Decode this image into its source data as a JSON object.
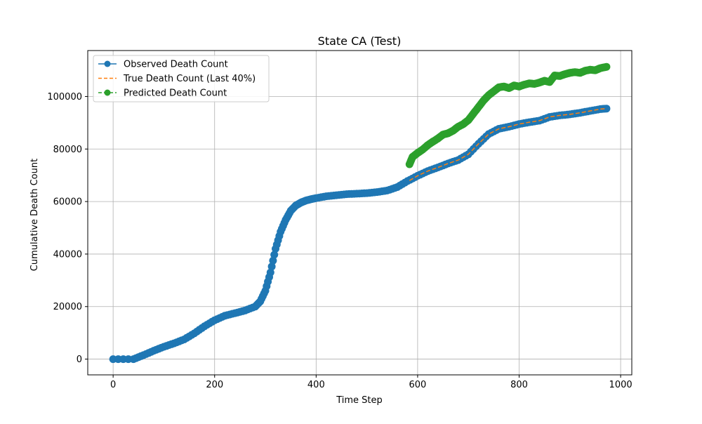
{
  "chart_data": {
    "type": "line",
    "title": "State CA (Test)",
    "xlabel": "Time Step",
    "ylabel": "Cumulative Death Count",
    "xlim": [
      -50,
      1022
    ],
    "ylim": [
      -6000,
      117500
    ],
    "xticks": [
      0,
      200,
      400,
      600,
      800,
      1000
    ],
    "xtick_labels": [
      "0",
      "200",
      "400",
      "600",
      "800",
      "1000"
    ],
    "yticks": [
      0,
      20000,
      40000,
      60000,
      80000,
      100000
    ],
    "ytick_labels": [
      "0",
      "20000",
      "40000",
      "60000",
      "80000",
      "100000"
    ],
    "grid": true,
    "legend_position": "top-left",
    "series": [
      {
        "name": "Observed Death Count",
        "color": "#1f77b4",
        "line_style": "solid",
        "marker": "circle",
        "x": [
          0,
          40,
          60,
          80,
          100,
          120,
          140,
          160,
          180,
          200,
          220,
          240,
          260,
          280,
          290,
          300,
          310,
          320,
          330,
          340,
          350,
          360,
          370,
          380,
          390,
          400,
          420,
          440,
          460,
          480,
          500,
          520,
          540,
          560,
          580,
          600,
          620,
          640,
          660,
          680,
          700,
          720,
          740,
          760,
          780,
          800,
          820,
          840,
          860,
          880,
          900,
          920,
          940,
          960,
          972
        ],
        "y": [
          0,
          0,
          1500,
          3200,
          4700,
          6000,
          7500,
          9800,
          12500,
          14800,
          16500,
          17500,
          18500,
          20000,
          22000,
          26000,
          33000,
          42000,
          48500,
          53000,
          56500,
          58500,
          59600,
          60400,
          60900,
          61300,
          62000,
          62400,
          62800,
          63000,
          63200,
          63600,
          64200,
          65500,
          67800,
          69800,
          71600,
          73000,
          74500,
          75800,
          78000,
          82000,
          85700,
          87700,
          88500,
          89500,
          90200,
          90800,
          92200,
          92800,
          93200,
          93800,
          94500,
          95200,
          95400
        ]
      },
      {
        "name": "True Death Count (Last 40%)",
        "color": "#ff7f0e",
        "line_style": "dashed",
        "x": [
          584,
          600,
          620,
          640,
          660,
          680,
          700,
          720,
          740,
          760,
          780,
          800,
          820,
          840,
          860,
          880,
          900,
          920,
          940,
          960,
          972
        ],
        "y": [
          68000,
          69800,
          71600,
          73000,
          74500,
          75800,
          78000,
          82000,
          85700,
          87700,
          88500,
          89500,
          90200,
          90800,
          92200,
          92800,
          93200,
          93800,
          94500,
          95200,
          95400
        ]
      },
      {
        "name": "Predicted Death Count",
        "color": "#2ca02c",
        "line_style": "dashed",
        "marker": "circle",
        "x": [
          584,
          590,
          600,
          610,
          620,
          630,
          640,
          650,
          660,
          670,
          680,
          690,
          700,
          710,
          720,
          730,
          740,
          750,
          760,
          770,
          780,
          790,
          800,
          810,
          820,
          830,
          840,
          850,
          860,
          870,
          880,
          890,
          900,
          910,
          920,
          930,
          940,
          950,
          960,
          972
        ],
        "y": [
          74200,
          77000,
          78500,
          79800,
          81500,
          82800,
          84000,
          85500,
          86000,
          87000,
          88500,
          89500,
          91000,
          93500,
          96000,
          98500,
          100500,
          102000,
          103500,
          103800,
          103200,
          104200,
          103800,
          104500,
          105000,
          104800,
          105300,
          106000,
          105500,
          108000,
          107800,
          108500,
          109000,
          109300,
          109000,
          109800,
          110200,
          110000,
          110800,
          111300
        ]
      }
    ]
  }
}
